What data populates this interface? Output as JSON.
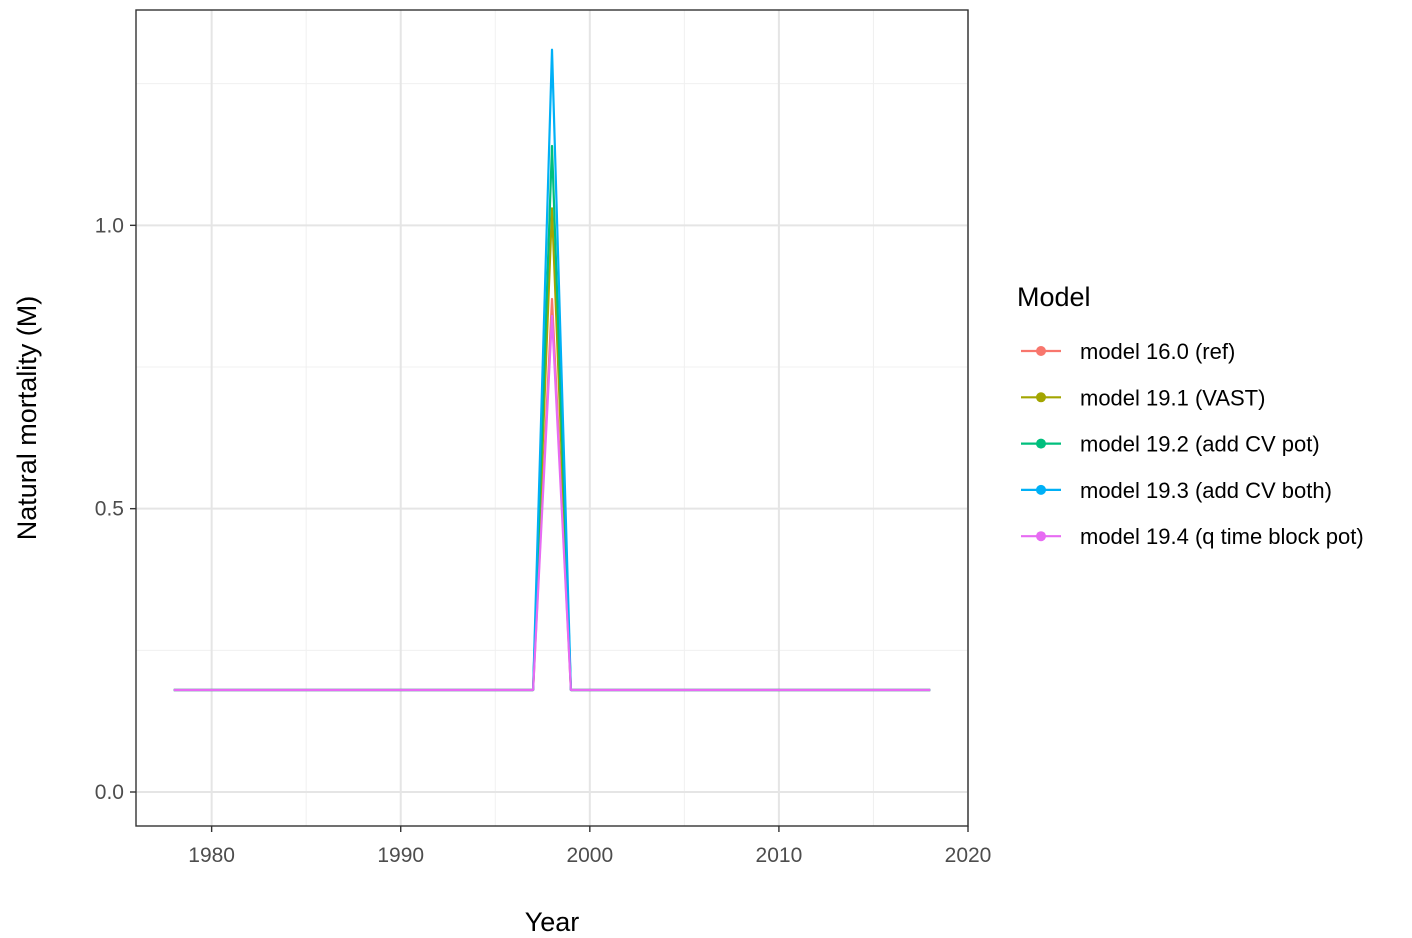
{
  "chart_data": {
    "type": "line",
    "xlabel": "Year",
    "ylabel": "Natural mortality (M)",
    "xlim": [
      1976,
      2020
    ],
    "ylim": [
      -0.06,
      1.38
    ],
    "x_ticks": [
      1980,
      1990,
      2000,
      2010,
      2020
    ],
    "x_tick_labels": [
      "1980",
      "1990",
      "2000",
      "2010",
      "2020"
    ],
    "y_ticks": [
      0.0,
      0.5,
      1.0
    ],
    "y_tick_labels": [
      "0.0",
      "0.5",
      "1.0"
    ],
    "grid": true,
    "legend": {
      "title": "Model",
      "placement": "right"
    },
    "base_value": 0.18,
    "series": [
      {
        "name": "model 16.0 (ref)",
        "color": "#F8766D",
        "x": [
          1978,
          1997,
          1998,
          1999,
          2018
        ],
        "y": [
          0.18,
          0.18,
          0.87,
          0.18,
          0.18
        ]
      },
      {
        "name": "model 19.1 (VAST)",
        "color": "#A3A500",
        "x": [
          1978,
          1997,
          1998,
          1999,
          2018
        ],
        "y": [
          0.18,
          0.18,
          1.03,
          0.18,
          0.18
        ]
      },
      {
        "name": "model 19.2 (add CV pot)",
        "color": "#00BF7D",
        "x": [
          1978,
          1997,
          1998,
          1999,
          2018
        ],
        "y": [
          0.18,
          0.18,
          1.14,
          0.18,
          0.18
        ]
      },
      {
        "name": "model 19.3 (add CV both)",
        "color": "#00B0F6",
        "x": [
          1978,
          1997,
          1998,
          1999,
          2018
        ],
        "y": [
          0.18,
          0.18,
          1.31,
          0.18,
          0.18
        ]
      },
      {
        "name": "model 19.4 (q time block pot)",
        "color": "#E76BF3",
        "x": [
          1978,
          1997,
          1998,
          1999,
          2018
        ],
        "y": [
          0.18,
          0.18,
          0.84,
          0.18,
          0.18
        ]
      }
    ]
  }
}
